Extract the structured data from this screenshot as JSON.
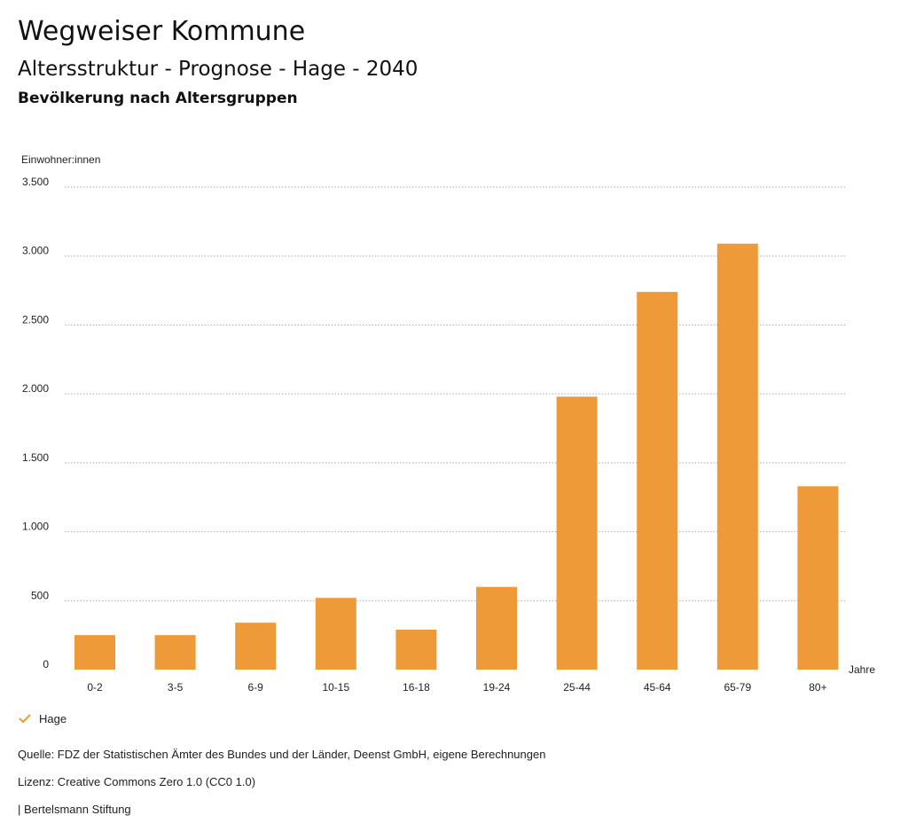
{
  "header": {
    "title": "Wegweiser Kommune",
    "subtitle": "Altersstruktur - Prognose - Hage - 2040",
    "chart_heading": "Bevölkerung nach Altersgruppen"
  },
  "legend": {
    "series_label": "Hage",
    "icon": "check-icon"
  },
  "footer": {
    "source": "Quelle: FDZ der Statistischen Ämter des Bundes und der Länder, Deenst GmbH, eigene Berechnungen",
    "license": "Lizenz: Creative Commons Zero 1.0 (CC0 1.0)",
    "publisher": "| Bertelsmann Stiftung"
  },
  "colors": {
    "bar": "#EE9A38",
    "grid": "#AAAAAA",
    "check": "#EE9A38"
  },
  "chart_data": {
    "type": "bar",
    "title": "Bevölkerung nach Altersgruppen",
    "ylabel": "Einwohner:innen",
    "xlabel": "Jahre",
    "ylim": [
      0,
      3500
    ],
    "yticks": [
      0,
      500,
      1000,
      1500,
      2000,
      2500,
      3000,
      3500
    ],
    "ytick_labels": [
      "0",
      "500",
      "1.000",
      "1.500",
      "2.000",
      "2.500",
      "3.000",
      "3.500"
    ],
    "grid": true,
    "categories": [
      "0-2",
      "3-5",
      "6-9",
      "10-15",
      "16-18",
      "19-24",
      "25-44",
      "45-64",
      "65-79",
      "80+"
    ],
    "series": [
      {
        "name": "Hage",
        "values": [
          250,
          250,
          340,
          520,
          290,
          600,
          1980,
          2740,
          3090,
          1330
        ]
      }
    ]
  }
}
